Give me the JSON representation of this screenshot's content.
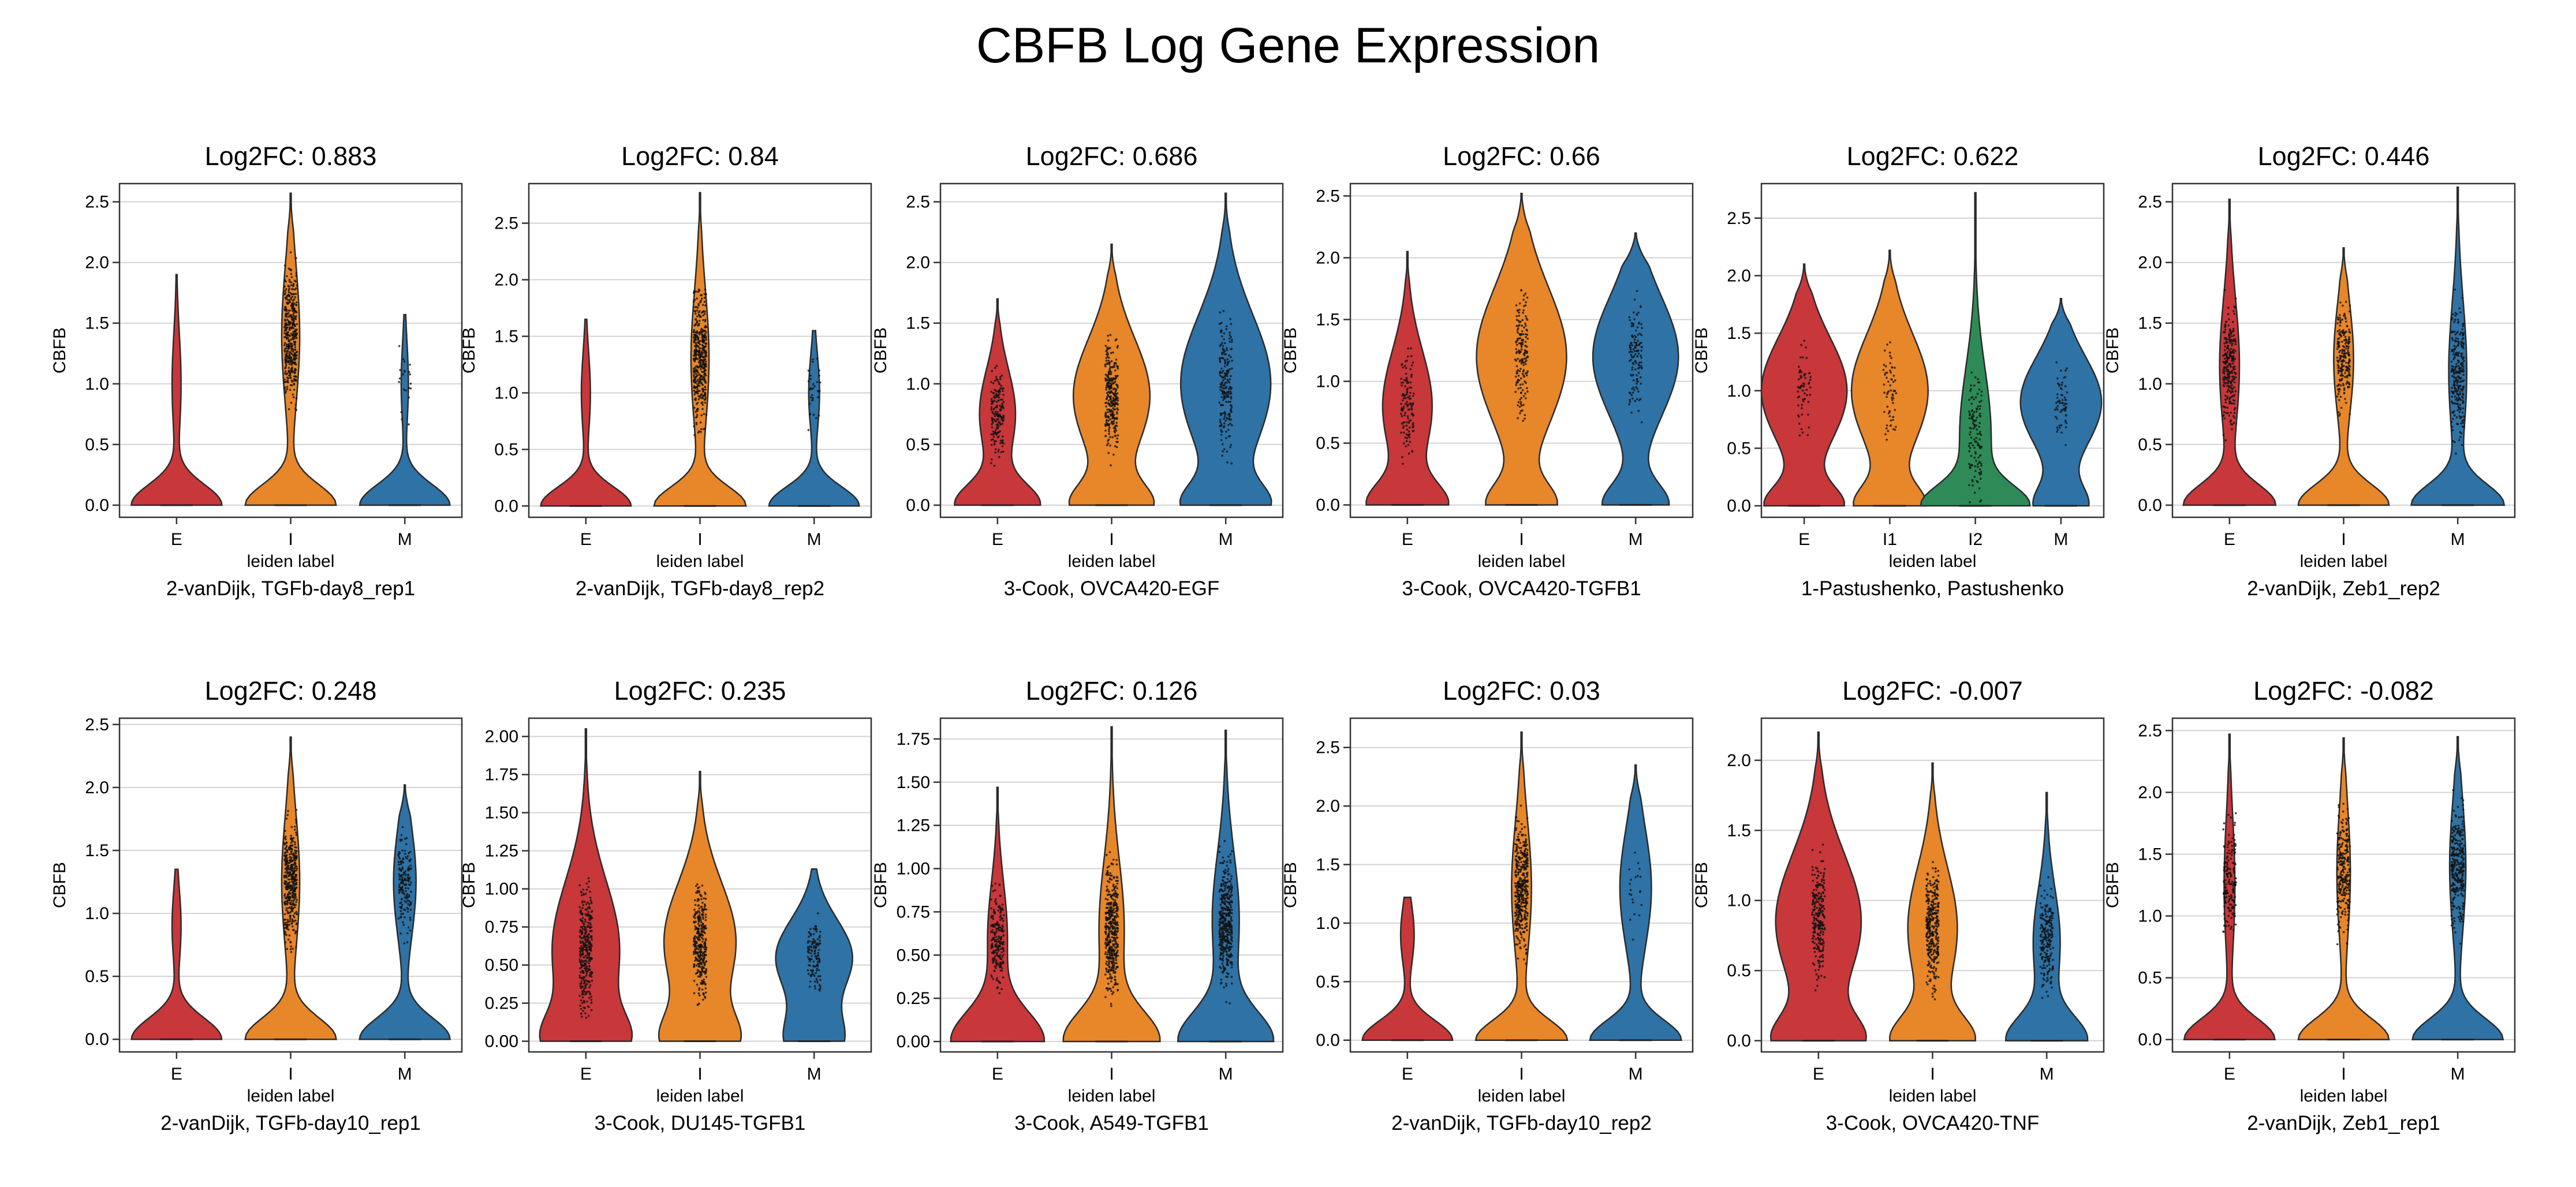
{
  "figure": {
    "title": "CBFB Log Gene Expression"
  },
  "colors": {
    "E": "#c8373a",
    "I": "#e8862a",
    "I1": "#e8862a",
    "I2": "#2e8b57",
    "M": "#2e72a6",
    "grid": "#d3d3d3",
    "frame": "#333333",
    "outline": "#2b2b2b"
  },
  "chart_data": [
    {
      "type": "violin",
      "title": "Log2FC: 0.883",
      "xlabel": "leiden label",
      "ylabel": "CBFB",
      "caption": "2-vanDijk, TGFb-day8_rep1",
      "categories": [
        "E",
        "I",
        "M"
      ],
      "ylim": [
        -0.1,
        2.65
      ],
      "yticks": [
        0.0,
        0.5,
        1.0,
        1.5,
        2.0,
        2.5
      ],
      "yticklabels": [
        "0.0",
        "0.5",
        "1.0",
        "1.5",
        "2.0",
        "2.5"
      ],
      "grid": true,
      "violins": [
        {
          "category": "E",
          "max": 1.9,
          "zero_width": 1.0,
          "upper_width": 0.1,
          "upper_center": 1.0,
          "strip_density": 0,
          "flat_top": true
        },
        {
          "category": "I",
          "max": 2.57,
          "zero_width": 1.0,
          "upper_width": 0.2,
          "upper_center": 1.4,
          "strip_density": 1.0
        },
        {
          "category": "M",
          "max": 1.57,
          "zero_width": 1.0,
          "upper_width": 0.08,
          "upper_center": 1.0,
          "strip_density": 0.05,
          "flat_top": true
        }
      ]
    },
    {
      "type": "violin",
      "title": "Log2FC: 0.84",
      "xlabel": "leiden label",
      "ylabel": "CBFB",
      "caption": "2-vanDijk, TGFb-day8_rep2",
      "categories": [
        "E",
        "I",
        "M"
      ],
      "ylim": [
        -0.1,
        2.85
      ],
      "yticks": [
        0.0,
        0.5,
        1.0,
        1.5,
        2.0,
        2.5
      ],
      "yticklabels": [
        "0.0",
        "0.5",
        "1.0",
        "1.5",
        "2.0",
        "2.5"
      ],
      "grid": true,
      "violins": [
        {
          "category": "E",
          "max": 1.65,
          "zero_width": 1.0,
          "upper_width": 0.1,
          "upper_center": 1.0,
          "strip_density": 0,
          "flat_top": true
        },
        {
          "category": "I",
          "max": 2.77,
          "zero_width": 1.0,
          "upper_width": 0.2,
          "upper_center": 1.3,
          "strip_density": 1.0
        },
        {
          "category": "M",
          "max": 1.55,
          "zero_width": 1.0,
          "upper_width": 0.12,
          "upper_center": 1.0,
          "strip_density": 0.08,
          "flat_top": true
        }
      ]
    },
    {
      "type": "violin",
      "title": "Log2FC: 0.686",
      "xlabel": "leiden label",
      "ylabel": "CBFB",
      "caption": "3-Cook, OVCA420-EGF",
      "categories": [
        "E",
        "I",
        "M"
      ],
      "ylim": [
        -0.1,
        2.65
      ],
      "yticks": [
        0.0,
        0.5,
        1.0,
        1.5,
        2.0,
        2.5
      ],
      "yticklabels": [
        "0.0",
        "0.5",
        "1.0",
        "1.5",
        "2.0",
        "2.5"
      ],
      "grid": true,
      "violins": [
        {
          "category": "E",
          "max": 1.7,
          "zero_width": 0.9,
          "upper_width": 0.4,
          "upper_center": 0.75,
          "strip_density": 0.4
        },
        {
          "category": "I",
          "max": 2.15,
          "zero_width": 0.8,
          "upper_width": 0.85,
          "upper_center": 0.9,
          "strip_density": 0.7
        },
        {
          "category": "M",
          "max": 2.57,
          "zero_width": 0.8,
          "upper_width": 1.0,
          "upper_center": 1.0,
          "strip_density": 0.5
        }
      ]
    },
    {
      "type": "violin",
      "title": "Log2FC: 0.66",
      "xlabel": "leiden label",
      "ylabel": "CBFB",
      "caption": "3-Cook, OVCA420-TGFB1",
      "categories": [
        "E",
        "I",
        "M"
      ],
      "ylim": [
        -0.1,
        2.6
      ],
      "yticks": [
        0.0,
        0.5,
        1.0,
        1.5,
        2.0,
        2.5
      ],
      "yticklabels": [
        "0.0",
        "0.5",
        "1.0",
        "1.5",
        "2.0",
        "2.5"
      ],
      "grid": true,
      "violins": [
        {
          "category": "E",
          "max": 2.05,
          "zero_width": 0.8,
          "upper_width": 0.55,
          "upper_center": 0.8,
          "strip_density": 0.3
        },
        {
          "category": "I",
          "max": 2.52,
          "zero_width": 0.7,
          "upper_width": 1.0,
          "upper_center": 1.2,
          "strip_density": 0.4
        },
        {
          "category": "M",
          "max": 2.2,
          "zero_width": 0.7,
          "upper_width": 0.95,
          "upper_center": 1.2,
          "strip_density": 0.3
        }
      ]
    },
    {
      "type": "violin",
      "title": "Log2FC: 0.622",
      "xlabel": "leiden label",
      "ylabel": "CBFB",
      "caption": "1-Pastushenko, Pastushenko",
      "categories": [
        "E",
        "I1",
        "I2",
        "M"
      ],
      "ylim": [
        -0.1,
        2.8
      ],
      "yticks": [
        0.0,
        0.5,
        1.0,
        1.5,
        2.0,
        2.5
      ],
      "yticklabels": [
        "0.0",
        "0.5",
        "1.0",
        "1.5",
        "2.0",
        "2.5"
      ],
      "grid": true,
      "violins": [
        {
          "category": "E",
          "max": 2.1,
          "zero_width": 0.8,
          "upper_width": 0.95,
          "upper_center": 1.0,
          "strip_density": 0.15
        },
        {
          "category": "I1",
          "max": 2.22,
          "zero_width": 0.7,
          "upper_width": 0.85,
          "upper_center": 1.0,
          "strip_density": 0.15
        },
        {
          "category": "I2",
          "max": 2.72,
          "zero_width": 1.0,
          "upper_width": 0.35,
          "upper_center": 0.6,
          "strip_density": 0.3
        },
        {
          "category": "M",
          "max": 1.8,
          "zero_width": 0.55,
          "upper_width": 0.9,
          "upper_center": 0.9,
          "strip_density": 0.15
        }
      ]
    },
    {
      "type": "violin",
      "title": "Log2FC: 0.446",
      "xlabel": "leiden label",
      "ylabel": "CBFB",
      "caption": "2-vanDijk, Zeb1_rep2",
      "categories": [
        "E",
        "I",
        "M"
      ],
      "ylim": [
        -0.1,
        2.65
      ],
      "yticks": [
        0.0,
        0.5,
        1.0,
        1.5,
        2.0,
        2.5
      ],
      "yticklabels": [
        "0.0",
        "0.5",
        "1.0",
        "1.5",
        "2.0",
        "2.5"
      ],
      "grid": true,
      "violins": [
        {
          "category": "E",
          "max": 2.52,
          "zero_width": 1.0,
          "upper_width": 0.22,
          "upper_center": 1.15,
          "strip_density": 0.6
        },
        {
          "category": "I",
          "max": 2.12,
          "zero_width": 1.0,
          "upper_width": 0.22,
          "upper_center": 1.2,
          "strip_density": 0.5
        },
        {
          "category": "M",
          "max": 2.62,
          "zero_width": 1.0,
          "upper_width": 0.2,
          "upper_center": 1.1,
          "strip_density": 0.6
        }
      ]
    },
    {
      "type": "violin",
      "title": "Log2FC: 0.248",
      "xlabel": "leiden label",
      "ylabel": "CBFB",
      "caption": "2-vanDijk, TGFb-day10_rep1",
      "categories": [
        "E",
        "I",
        "M"
      ],
      "ylim": [
        -0.1,
        2.55
      ],
      "yticks": [
        0.0,
        0.5,
        1.0,
        1.5,
        2.0,
        2.5
      ],
      "yticklabels": [
        "0.0",
        "0.5",
        "1.0",
        "1.5",
        "2.0",
        "2.5"
      ],
      "grid": true,
      "violins": [
        {
          "category": "E",
          "max": 1.35,
          "zero_width": 1.0,
          "upper_width": 0.1,
          "upper_center": 0.9,
          "strip_density": 0,
          "flat_top": true
        },
        {
          "category": "I",
          "max": 2.4,
          "zero_width": 1.0,
          "upper_width": 0.2,
          "upper_center": 1.25,
          "strip_density": 1.0
        },
        {
          "category": "M",
          "max": 2.02,
          "zero_width": 1.0,
          "upper_width": 0.25,
          "upper_center": 1.25,
          "strip_density": 0.4
        }
      ]
    },
    {
      "type": "violin",
      "title": "Log2FC: 0.235",
      "xlabel": "leiden label",
      "ylabel": "CBFB",
      "caption": "3-Cook, DU145-TGFB1",
      "categories": [
        "E",
        "I",
        "M"
      ],
      "ylim": [
        -0.07,
        2.12
      ],
      "yticks": [
        0.0,
        0.25,
        0.5,
        0.75,
        1.0,
        1.25,
        1.5,
        1.75,
        2.0
      ],
      "yticklabels": [
        "0.00",
        "0.25",
        "0.50",
        "0.75",
        "1.00",
        "1.25",
        "1.50",
        "1.75",
        "2.00"
      ],
      "grid": true,
      "violins": [
        {
          "category": "E",
          "max": 2.05,
          "zero_width": 0.7,
          "upper_width": 0.75,
          "upper_center": 0.6,
          "strip_density": 0.8
        },
        {
          "category": "I",
          "max": 1.77,
          "zero_width": 0.7,
          "upper_width": 0.8,
          "upper_center": 0.65,
          "strip_density": 0.8
        },
        {
          "category": "M",
          "max": 1.13,
          "zero_width": 0.6,
          "upper_width": 0.85,
          "upper_center": 0.55,
          "strip_density": 0.3,
          "flat_top": true
        }
      ]
    },
    {
      "type": "violin",
      "title": "Log2FC: 0.126",
      "xlabel": "leiden label",
      "ylabel": "CBFB",
      "caption": "3-Cook, A549-TGFB1",
      "categories": [
        "E",
        "I",
        "M"
      ],
      "ylim": [
        -0.06,
        1.87
      ],
      "yticks": [
        0.0,
        0.25,
        0.5,
        0.75,
        1.0,
        1.25,
        1.5,
        1.75
      ],
      "yticklabels": [
        "0.00",
        "0.25",
        "0.50",
        "0.75",
        "1.00",
        "1.25",
        "1.50",
        "1.75"
      ],
      "grid": true,
      "violins": [
        {
          "category": "E",
          "max": 1.47,
          "zero_width": 1.0,
          "upper_width": 0.22,
          "upper_center": 0.6,
          "strip_density": 0.5
        },
        {
          "category": "I",
          "max": 1.82,
          "zero_width": 1.0,
          "upper_width": 0.28,
          "upper_center": 0.65,
          "strip_density": 1.0
        },
        {
          "category": "M",
          "max": 1.8,
          "zero_width": 1.0,
          "upper_width": 0.3,
          "upper_center": 0.7,
          "strip_density": 1.0
        }
      ]
    },
    {
      "type": "violin",
      "title": "Log2FC: 0.03",
      "xlabel": "leiden label",
      "ylabel": "CBFB",
      "caption": "2-vanDijk, TGFb-day10_rep2",
      "categories": [
        "E",
        "I",
        "M"
      ],
      "ylim": [
        -0.1,
        2.75
      ],
      "yticks": [
        0.0,
        0.5,
        1.0,
        1.5,
        2.0,
        2.5
      ],
      "yticklabels": [
        "0.0",
        "0.5",
        "1.0",
        "1.5",
        "2.0",
        "2.5"
      ],
      "grid": true,
      "violins": [
        {
          "category": "E",
          "max": 1.22,
          "zero_width": 1.0,
          "upper_width": 0.15,
          "upper_center": 0.9,
          "strip_density": 0,
          "flat_top": true
        },
        {
          "category": "I",
          "max": 2.63,
          "zero_width": 1.0,
          "upper_width": 0.22,
          "upper_center": 1.3,
          "strip_density": 1.0
        },
        {
          "category": "M",
          "max": 2.35,
          "zero_width": 1.0,
          "upper_width": 0.35,
          "upper_center": 1.3,
          "strip_density": 0.05
        }
      ]
    },
    {
      "type": "violin",
      "title": "Log2FC: -0.007",
      "xlabel": "leiden label",
      "ylabel": "CBFB",
      "caption": "3-Cook, OVCA420-TNF",
      "categories": [
        "E",
        "I",
        "M"
      ],
      "ylim": [
        -0.08,
        2.3
      ],
      "yticks": [
        0.0,
        0.5,
        1.0,
        1.5,
        2.0
      ],
      "yticklabels": [
        "0.0",
        "0.5",
        "1.0",
        "1.5",
        "2.0"
      ],
      "grid": true,
      "violins": [
        {
          "category": "E",
          "max": 2.2,
          "zero_width": 0.85,
          "upper_width": 0.95,
          "upper_center": 0.85,
          "strip_density": 0.6
        },
        {
          "category": "I",
          "max": 1.98,
          "zero_width": 0.85,
          "upper_width": 0.55,
          "upper_center": 0.8,
          "strip_density": 0.8
        },
        {
          "category": "M",
          "max": 1.77,
          "zero_width": 0.85,
          "upper_width": 0.3,
          "upper_center": 0.7,
          "strip_density": 0.5
        }
      ]
    },
    {
      "type": "violin",
      "title": "Log2FC: -0.082",
      "xlabel": "leiden label",
      "ylabel": "CBFB",
      "caption": "2-vanDijk, Zeb1_rep1",
      "categories": [
        "E",
        "I",
        "M"
      ],
      "ylim": [
        -0.1,
        2.6
      ],
      "yticks": [
        0.0,
        0.5,
        1.0,
        1.5,
        2.0,
        2.5
      ],
      "yticklabels": [
        "0.0",
        "0.5",
        "1.0",
        "1.5",
        "2.0",
        "2.5"
      ],
      "grid": true,
      "violins": [
        {
          "category": "E",
          "max": 2.47,
          "zero_width": 1.0,
          "upper_width": 0.12,
          "upper_center": 1.25,
          "strip_density": 0.4
        },
        {
          "category": "I",
          "max": 2.44,
          "zero_width": 1.0,
          "upper_width": 0.15,
          "upper_center": 1.35,
          "strip_density": 0.6
        },
        {
          "category": "M",
          "max": 2.45,
          "zero_width": 1.0,
          "upper_width": 0.18,
          "upper_center": 1.4,
          "strip_density": 0.7
        }
      ]
    }
  ]
}
